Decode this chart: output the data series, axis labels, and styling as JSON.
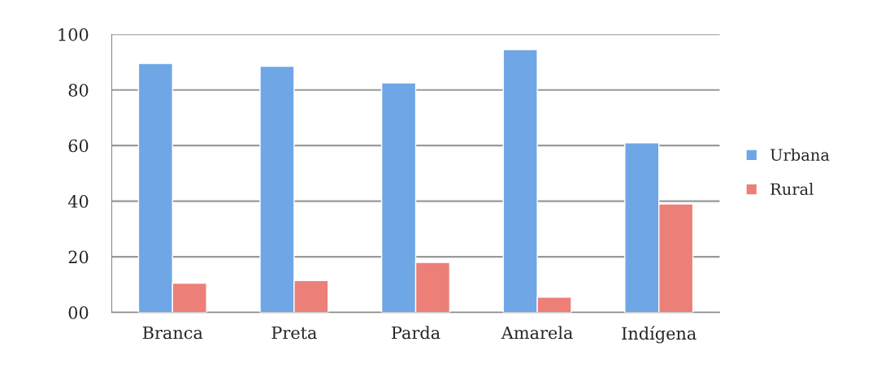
{
  "chart_data": {
    "type": "bar",
    "categories": [
      "Branca",
      "Preta",
      "Parda",
      "Amarela",
      "Indígena"
    ],
    "series": [
      {
        "name": "Urbana",
        "color": "#6fa6e6",
        "values": [
          89.5,
          88.5,
          82.5,
          94.5,
          61
        ]
      },
      {
        "name": "Rural",
        "color": "#ec7f78",
        "values": [
          10.5,
          11.5,
          18,
          5.5,
          39
        ]
      }
    ],
    "ylim": [
      0,
      100
    ],
    "yticks": [
      {
        "value": 0,
        "label": "00"
      },
      20,
      40,
      60,
      80,
      100
    ],
    "grid": "y",
    "legend": "right"
  }
}
